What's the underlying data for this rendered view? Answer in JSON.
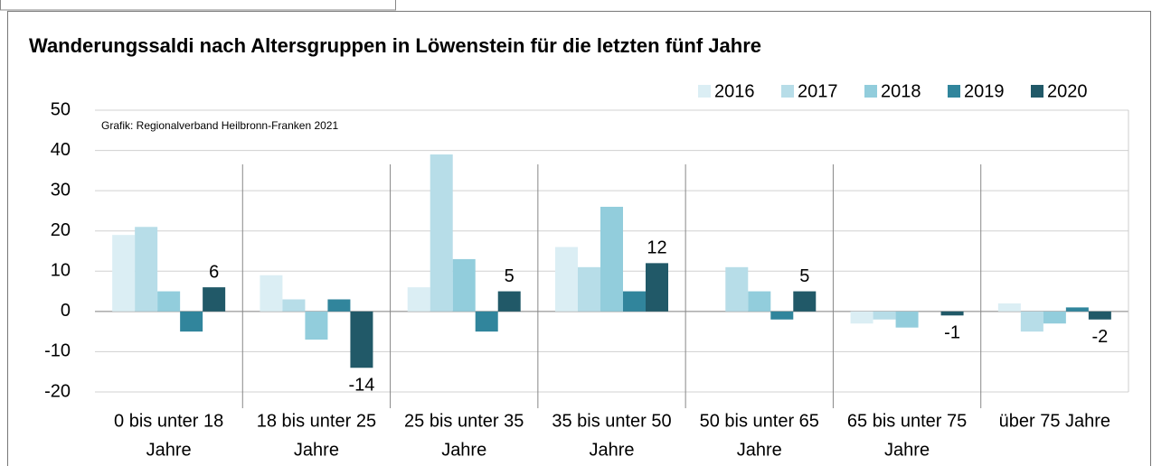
{
  "chart_data": {
    "type": "bar",
    "title": "Wanderungssaldi nach Altersgruppen in Löwenstein für die letzten fünf Jahre",
    "annotation": "Grafik: Regionalverband Heilbronn-Franken 2021",
    "categories": [
      [
        "0 bis unter 18",
        "Jahre"
      ],
      [
        "18 bis unter 25",
        "Jahre"
      ],
      [
        "25 bis unter 35",
        "Jahre"
      ],
      [
        "35 bis unter 50",
        "Jahre"
      ],
      [
        "50 bis unter 65",
        "Jahre"
      ],
      [
        "65 bis unter 75",
        "Jahre"
      ],
      [
        "über 75 Jahre"
      ]
    ],
    "series": [
      {
        "name": "2016",
        "color": "#dbeef4",
        "values": [
          19,
          9,
          6,
          16,
          0,
          -3,
          2
        ]
      },
      {
        "name": "2017",
        "color": "#b7dde8",
        "values": [
          21,
          3,
          39,
          11,
          11,
          -2,
          -5
        ]
      },
      {
        "name": "2018",
        "color": "#92cddc",
        "values": [
          5,
          -7,
          13,
          26,
          5,
          -4,
          -3
        ]
      },
      {
        "name": "2019",
        "color": "#31859c",
        "values": [
          -5,
          3,
          -5,
          5,
          -2,
          0,
          1
        ]
      },
      {
        "name": "2020",
        "color": "#215968",
        "values": [
          6,
          -14,
          5,
          12,
          5,
          -1,
          -2
        ],
        "data_labels": true
      }
    ],
    "ylim": [
      -20,
      50
    ],
    "yticks": [
      -20,
      -10,
      0,
      10,
      20,
      30,
      40,
      50
    ],
    "grid": true,
    "legend": "top-right"
  }
}
